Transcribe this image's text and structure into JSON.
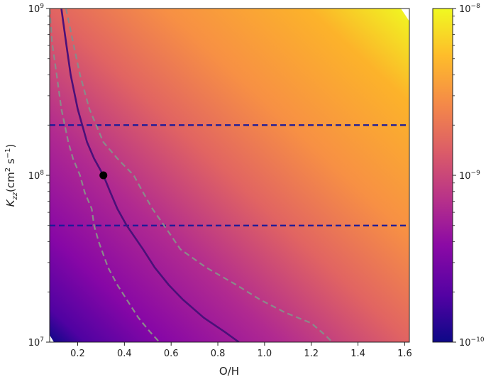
{
  "chart_data": {
    "type": "heatmap",
    "xlabel": "O/H",
    "ylabel_main": "K",
    "ylabel_sub": "zz",
    "ylabel_unit_open": "(cm",
    "ylabel_unit_exp1": "2",
    "ylabel_unit_mid": " s",
    "ylabel_unit_exp2": "−1",
    "ylabel_unit_close": ")",
    "xlim": [
      0.08,
      1.62
    ],
    "ylim": [
      10000000,
      1000000000
    ],
    "yscale": "log",
    "x_ticks": [
      {
        "value": 0.2,
        "label": "0.2"
      },
      {
        "value": 0.4,
        "label": "0.4"
      },
      {
        "value": 0.6,
        "label": "0.6"
      },
      {
        "value": 0.8,
        "label": "0.8"
      },
      {
        "value": 1.0,
        "label": "1.0"
      },
      {
        "value": 1.2,
        "label": "1.2"
      },
      {
        "value": 1.4,
        "label": "1.4"
      },
      {
        "value": 1.6,
        "label": "1.6"
      }
    ],
    "y_ticks": [
      {
        "value": 10000000,
        "base": "10",
        "exp": "7"
      },
      {
        "value": 100000000,
        "base": "10",
        "exp": "8"
      },
      {
        "value": 1000000000,
        "base": "10",
        "exp": "9"
      }
    ],
    "colorbar": {
      "colormap": "plasma",
      "scale": "log",
      "range": [
        1e-10,
        1e-08
      ],
      "ticks": [
        {
          "value": 1e-08,
          "base": "10",
          "exp": "−8"
        },
        {
          "value": 1e-09,
          "base": "10",
          "exp": "−9"
        },
        {
          "value": 1e-10,
          "base": "10",
          "exp": "−10"
        }
      ]
    },
    "contours": [
      {
        "style": "dashed",
        "color": "#8a8a8a",
        "points": [
          [
            0.08,
            1000000000
          ],
          [
            0.09,
            630000000
          ],
          [
            0.11,
            400000000
          ],
          [
            0.13,
            250000000
          ],
          [
            0.16,
            158000000
          ],
          [
            0.18,
            126000000
          ],
          [
            0.21,
            100000000
          ],
          [
            0.23,
            79000000
          ],
          [
            0.26,
            63000000
          ],
          [
            0.27,
            50000000
          ],
          [
            0.29,
            40000000
          ],
          [
            0.33,
            28000000
          ],
          [
            0.37,
            22000000
          ],
          [
            0.41,
            18000000
          ],
          [
            0.46,
            14000000
          ],
          [
            0.51,
            11500000
          ],
          [
            0.55,
            10000000
          ]
        ]
      },
      {
        "style": "solid",
        "color": "#4b1079",
        "points": [
          [
            0.13,
            1000000000
          ],
          [
            0.15,
            630000000
          ],
          [
            0.17,
            400000000
          ],
          [
            0.2,
            250000000
          ],
          [
            0.24,
            158000000
          ],
          [
            0.27,
            126000000
          ],
          [
            0.31,
            100000000
          ],
          [
            0.34,
            79000000
          ],
          [
            0.37,
            63000000
          ],
          [
            0.41,
            50000000
          ],
          [
            0.48,
            36000000
          ],
          [
            0.53,
            28000000
          ],
          [
            0.59,
            22000000
          ],
          [
            0.65,
            18000000
          ],
          [
            0.74,
            14000000
          ],
          [
            0.83,
            11500000
          ],
          [
            0.89,
            10000000
          ]
        ]
      },
      {
        "style": "dashed",
        "color": "#8a8a8a",
        "points": [
          [
            0.15,
            1000000000
          ],
          [
            0.18,
            630000000
          ],
          [
            0.21,
            400000000
          ],
          [
            0.25,
            250000000
          ],
          [
            0.31,
            158000000
          ],
          [
            0.37,
            126000000
          ],
          [
            0.44,
            100000000
          ],
          [
            0.48,
            79000000
          ],
          [
            0.52,
            63000000
          ],
          [
            0.57,
            50000000
          ],
          [
            0.64,
            36000000
          ],
          [
            0.75,
            28000000
          ],
          [
            0.88,
            22000000
          ],
          [
            0.98,
            18000000
          ],
          [
            1.09,
            15000000
          ],
          [
            1.2,
            13000000
          ],
          [
            1.26,
            11000000
          ],
          [
            1.29,
            10000000
          ]
        ]
      }
    ],
    "hlines": [
      {
        "y": 200000000,
        "style": "dashed",
        "color": "#1a1a9a"
      },
      {
        "y": 50000000,
        "style": "dashed",
        "color": "#1a1a9a"
      }
    ],
    "marker": {
      "x": 0.31,
      "y": 100000000,
      "color": "#000000"
    }
  }
}
